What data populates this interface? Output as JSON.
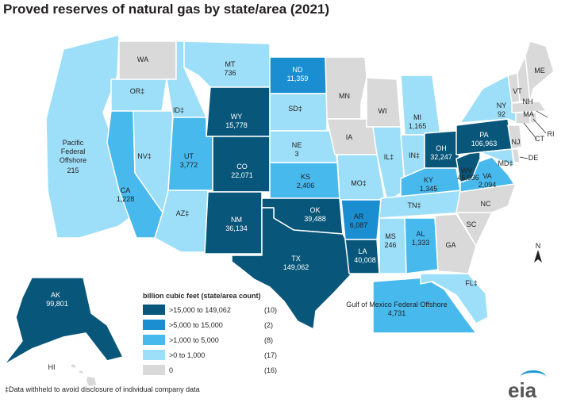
{
  "title": "Proved reserves of natural gas by state/area (2021)",
  "colors": {
    "tier1": "#08577a",
    "tier2": "#1a8ed1",
    "tier3": "#47b9ec",
    "tier4": "#9ddff8",
    "zero": "#d9d9d9"
  },
  "regions": {
    "wa": {
      "name": "WA",
      "value": ""
    },
    "or": {
      "name": "OR‡",
      "value": ""
    },
    "ca": {
      "name": "CA",
      "value": "1,228"
    },
    "nv": {
      "name": "NV‡",
      "value": ""
    },
    "id": {
      "name": "ID‡",
      "value": ""
    },
    "mt": {
      "name": "MT",
      "value": "736"
    },
    "wy": {
      "name": "WY",
      "value": "15,778"
    },
    "ut": {
      "name": "UT",
      "value": "3,772"
    },
    "az": {
      "name": "AZ‡",
      "value": ""
    },
    "co": {
      "name": "CO",
      "value": "22,071"
    },
    "nm": {
      "name": "NM",
      "value": "36,134"
    },
    "nd": {
      "name": "ND",
      "value": "11,359"
    },
    "sd": {
      "name": "SD‡",
      "value": ""
    },
    "ne": {
      "name": "NE",
      "value": "3"
    },
    "ks": {
      "name": "KS",
      "value": "2,406"
    },
    "ok": {
      "name": "OK",
      "value": "39,488"
    },
    "tx": {
      "name": "TX",
      "value": "149,062"
    },
    "mn": {
      "name": "MN",
      "value": ""
    },
    "ia": {
      "name": "IA",
      "value": ""
    },
    "mo": {
      "name": "MO‡",
      "value": ""
    },
    "ar": {
      "name": "AR",
      "value": "6,087"
    },
    "la": {
      "name": "LA",
      "value": "40,008"
    },
    "wi": {
      "name": "WI",
      "value": ""
    },
    "il": {
      "name": "IL‡",
      "value": ""
    },
    "mi": {
      "name": "MI",
      "value": "1,165"
    },
    "in": {
      "name": "IN‡",
      "value": ""
    },
    "oh": {
      "name": "OH",
      "value": "32,247"
    },
    "ky": {
      "name": "KY",
      "value": "1,345"
    },
    "tn": {
      "name": "TN‡",
      "value": ""
    },
    "ms": {
      "name": "MS",
      "value": "246"
    },
    "al": {
      "name": "AL",
      "value": "1,333"
    },
    "ga": {
      "name": "GA",
      "value": ""
    },
    "fl": {
      "name": "FL‡",
      "value": ""
    },
    "sc": {
      "name": "SC",
      "value": ""
    },
    "nc": {
      "name": "NC",
      "value": ""
    },
    "va": {
      "name": "VA",
      "value": "2,094"
    },
    "wv": {
      "name": "WV",
      "value": "46,936"
    },
    "pa": {
      "name": "PA",
      "value": "106,963"
    },
    "ny": {
      "name": "NY",
      "value": "92"
    },
    "md": {
      "name": "MD‡",
      "value": ""
    },
    "de": {
      "name": "DE",
      "value": ""
    },
    "nj": {
      "name": "NJ",
      "value": ""
    },
    "ct": {
      "name": "CT",
      "value": ""
    },
    "ri": {
      "name": "RI",
      "value": ""
    },
    "ma": {
      "name": "MA",
      "value": ""
    },
    "vt": {
      "name": "VT",
      "value": ""
    },
    "nh": {
      "name": "NH",
      "value": ""
    },
    "me": {
      "name": "ME",
      "value": ""
    },
    "ak": {
      "name": "AK",
      "value": "99,801"
    },
    "hi": {
      "name": "HI",
      "value": ""
    },
    "pac": {
      "name": "Pacific Federal Offshore",
      "value": "215"
    },
    "gom": {
      "name": "Gulf of Mexico Federal Offshore",
      "value": "4,731"
    }
  },
  "legend": {
    "title": "billion cubic feet (state/area count)",
    "items": [
      {
        "label": ">15,000 to 149,062",
        "count": "(10)"
      },
      {
        "label": ">5,000 to 15,000",
        "count": "(2)"
      },
      {
        "label": ">1,000 to 5,000",
        "count": "(8)"
      },
      {
        "label": ">0 to 1,000",
        "count": "(17)"
      },
      {
        "label": "0",
        "count": "(16)"
      }
    ]
  },
  "compass": "N",
  "footnote": "‡Data withheld to avoid disclosure of individual company data",
  "logo": "eia"
}
